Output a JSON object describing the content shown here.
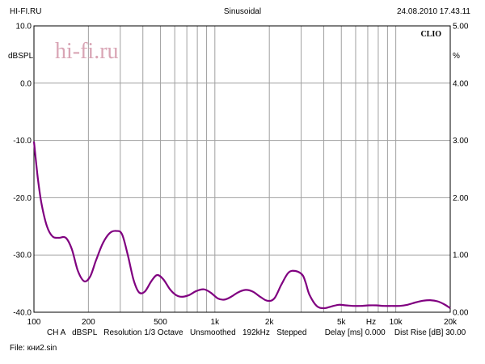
{
  "header": {
    "site": "HI-FI.RU",
    "mode": "Sinusoidal",
    "datetime": "24.08.2010 17.43.11"
  },
  "brand": {
    "clio": "CLIO",
    "watermark": "hi-fi.ru"
  },
  "footer": {
    "settings": "CH A   dBSPL   Resolution 1/3 Octave   Unsmoothed   192kHz   Stepped        Delay [ms] 0.000    Dist Rise [dB] 30.00",
    "file": "File: кни2.sin"
  },
  "colors": {
    "curve": "#800080",
    "grid": "#a0a0a0",
    "frame": "#000000"
  },
  "chart_data": {
    "type": "line",
    "xscale": "log",
    "xlim": [
      100,
      20000
    ],
    "ylim": [
      -40,
      10
    ],
    "y2lim": [
      0,
      5
    ],
    "ylabel": "dBSPL",
    "y2label": "%",
    "xunit": "Hz",
    "grid": true,
    "yticks": [
      "10.0",
      "0.0",
      "-10.0",
      "-20.0",
      "-30.0",
      "-40.0"
    ],
    "y2ticks": [
      "5.00",
      "4.00",
      "3.00",
      "2.00",
      "1.00",
      "0.00"
    ],
    "xticks": [
      {
        "value": 100,
        "label": "100"
      },
      {
        "value": 200,
        "label": "200"
      },
      {
        "value": 500,
        "label": "500"
      },
      {
        "value": 1000,
        "label": "1k"
      },
      {
        "value": 2000,
        "label": "2k"
      },
      {
        "value": 5000,
        "label": "5k"
      },
      {
        "value": 10000,
        "label": "10k"
      },
      {
        "value": 20000,
        "label": "20k"
      }
    ],
    "series": [
      {
        "x": [
          100,
          105,
          110,
          118,
          127,
          137,
          150,
          162,
          175,
          190,
          205,
          220,
          240,
          262,
          285,
          307,
          330,
          355,
          380,
          410,
          445,
          480,
          520,
          565,
          610,
          660,
          720,
          790,
          870,
          950,
          1040,
          1130,
          1230,
          1350,
          1480,
          1620,
          1780,
          1950,
          2130,
          2330,
          2550,
          2790,
          3050,
          3180,
          3330,
          3650,
          4000,
          4400,
          4850,
          5300,
          5850,
          6400,
          7100,
          7800,
          8600,
          9500,
          10500,
          11600,
          12800,
          14100,
          15500,
          17000,
          18500,
          20000
        ],
        "y": [
          -10.2,
          -16.5,
          -21.0,
          -25.0,
          -26.8,
          -27.0,
          -27.0,
          -29.0,
          -32.8,
          -34.6,
          -33.7,
          -31.0,
          -28.0,
          -26.2,
          -25.8,
          -26.4,
          -30.0,
          -34.3,
          -36.5,
          -36.4,
          -34.6,
          -33.5,
          -34.3,
          -36.0,
          -37.0,
          -37.3,
          -37.0,
          -36.3,
          -36.0,
          -36.6,
          -37.6,
          -37.8,
          -37.3,
          -36.5,
          -36.1,
          -36.4,
          -37.3,
          -38.0,
          -37.6,
          -35.2,
          -33.1,
          -32.8,
          -33.5,
          -34.9,
          -36.9,
          -38.9,
          -39.3,
          -39.0,
          -38.7,
          -38.8,
          -38.9,
          -38.9,
          -38.8,
          -38.8,
          -38.9,
          -38.9,
          -38.9,
          -38.7,
          -38.3,
          -38.0,
          -37.9,
          -38.1,
          -38.6,
          -39.3
        ]
      }
    ]
  }
}
